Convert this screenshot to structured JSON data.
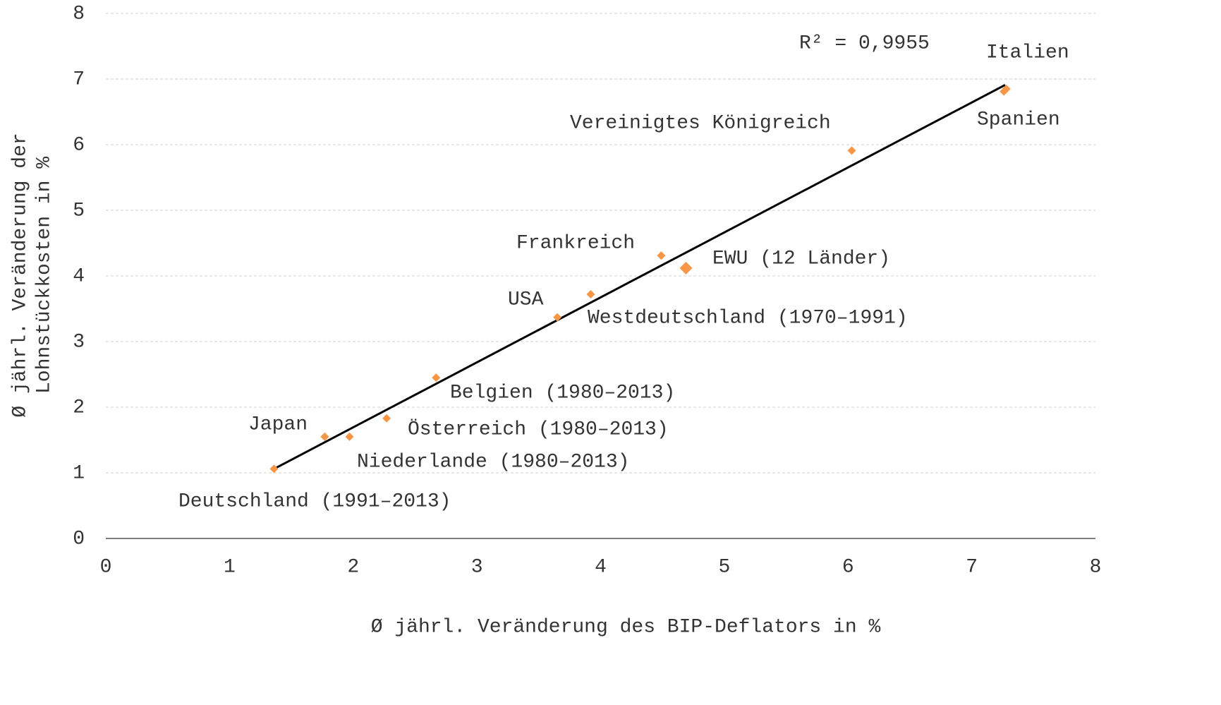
{
  "chart_data": {
    "type": "scatter",
    "xlabel": "Ø jährl. Veränderung des BIP-Deflators in %",
    "ylabel": [
      "Ø jährl. Veränderung der",
      "Lohnstückkosten in %"
    ],
    "annotation": "R² = 0,9955",
    "labels": [
      "Deutschland (1991–2013)",
      "Japan",
      "Niederlande (1980–2013)",
      "Österreich (1980–2013)",
      "Belgien (1980–2013)",
      "Westdeutschland (1970–1991)",
      "USA",
      "Frankreich",
      "EWU (12 Länder)",
      "Vereinigtes Königreich",
      "Spanien",
      "Italien"
    ],
    "x": [
      1.36,
      1.77,
      1.97,
      2.27,
      2.67,
      3.65,
      3.92,
      4.49,
      4.69,
      6.03,
      7.26,
      7.28
    ],
    "y": [
      1.06,
      1.55,
      1.55,
      1.83,
      2.45,
      3.37,
      3.72,
      4.31,
      4.12,
      5.91,
      6.81,
      6.85
    ],
    "color": "#f79646",
    "trendline": {
      "x": [
        1.36,
        7.27
      ],
      "y": [
        1.06,
        6.91
      ],
      "color": "#000000"
    },
    "xlim": [
      0,
      8
    ],
    "xticks": [
      0,
      1,
      2,
      3,
      4,
      5,
      6,
      7,
      8
    ],
    "ylim": [
      0,
      8
    ],
    "yticks": [
      0,
      1,
      2,
      3,
      4,
      5,
      6,
      7,
      8
    ],
    "grid": true
  }
}
